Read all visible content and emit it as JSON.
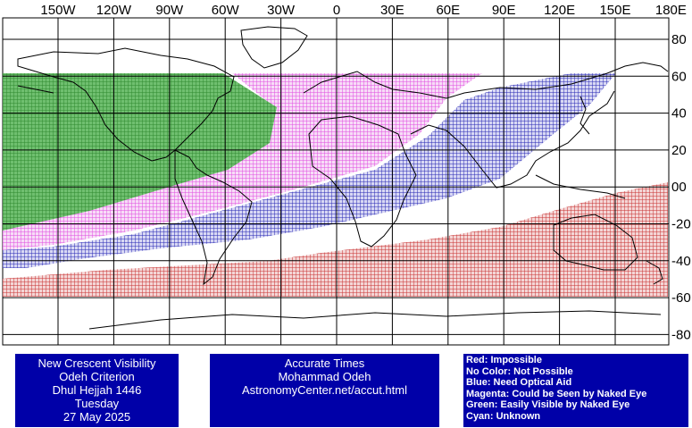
{
  "map": {
    "longitude_labels": [
      "150W",
      "120W",
      "90W",
      "60W",
      "30W",
      "0",
      "30E",
      "60E",
      "90E",
      "120E",
      "150E",
      "180E"
    ],
    "latitude_labels": [
      "80",
      "60",
      "40",
      "20",
      "00",
      "-20",
      "-40",
      "-60",
      "-80"
    ],
    "zones": [
      {
        "name": "Red",
        "color": "#c83232"
      },
      {
        "name": "Blue",
        "color": "#2828b4"
      },
      {
        "name": "Magenta",
        "color": "#e678e6"
      },
      {
        "name": "Green",
        "color": "#3c963c"
      }
    ]
  },
  "info": {
    "title": "New Crescent Visibility",
    "criterion": "Odeh Criterion",
    "month": "Dhul Hejjah 1446",
    "weekday": "Tuesday",
    "date": "27 May 2025"
  },
  "credits": {
    "line1": "Accurate Times",
    "line2": "Mohammad Odeh",
    "line3": "AstronomyCenter.net/accut.html"
  },
  "legend": [
    "Red: Impossible",
    "No Color: Not Possible",
    "Blue: Need Optical Aid",
    "Magenta: Could be Seen by Naked Eye",
    "Green: Easily Visible by Naked Eye",
    "Cyan: Unknown"
  ]
}
